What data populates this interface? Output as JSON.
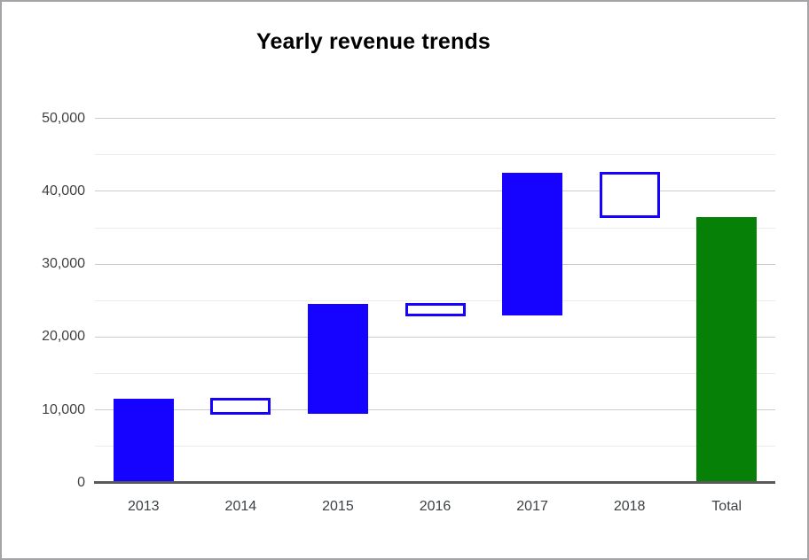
{
  "chart_data": {
    "type": "waterfall",
    "title": "Yearly revenue trends",
    "categories": [
      "2013",
      "2014",
      "2015",
      "2016",
      "2017",
      "2018",
      "Total"
    ],
    "bars": [
      {
        "label": "2013",
        "start": 0,
        "end": 11500,
        "change": 11500,
        "kind": "increase"
      },
      {
        "label": "2014",
        "start": 11500,
        "end": 9500,
        "change": -2000,
        "kind": "decrease"
      },
      {
        "label": "2015",
        "start": 9500,
        "end": 24500,
        "change": 15000,
        "kind": "increase"
      },
      {
        "label": "2016",
        "start": 24500,
        "end": 23000,
        "change": -1500,
        "kind": "decrease"
      },
      {
        "label": "2017",
        "start": 23000,
        "end": 42500,
        "change": 19500,
        "kind": "increase"
      },
      {
        "label": "2018",
        "start": 42500,
        "end": 36500,
        "change": -6000,
        "kind": "decrease"
      },
      {
        "label": "Total",
        "start": 0,
        "end": 36500,
        "change": 36500,
        "kind": "total"
      }
    ],
    "xlabel": "",
    "ylabel": "",
    "ylim": [
      0,
      50000
    ],
    "y_axis": {
      "major_tick_labels": [
        "0",
        "10,000",
        "20,000",
        "30,000",
        "40,000",
        "50,000"
      ],
      "major_step": 10000,
      "minor_step": 5000
    },
    "grid": true,
    "legend": "none"
  },
  "colors": {
    "increase_fill": "#1503ff",
    "decrease_fill": "#ffffff",
    "decrease_border": "#1503ff",
    "total_fill": "#068006",
    "axis_zero_line": "#595959",
    "major_gridline": "#cccccc",
    "minor_gridline": "#ebebeb",
    "y_tick_label": "#424242",
    "x_tick_label": "#3c4043",
    "title_text": "#000000",
    "canvas_border": "#a3a3a8",
    "background": "#ffffff"
  }
}
